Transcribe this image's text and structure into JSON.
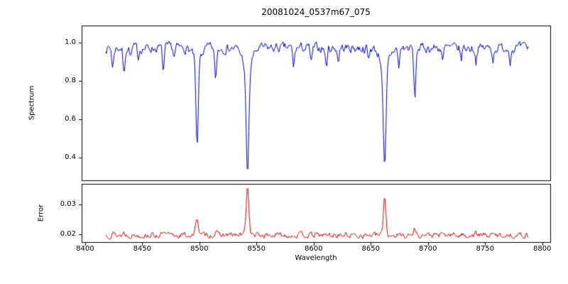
{
  "figure": {
    "title": "20081024_0537m67_075",
    "xlabel": "Wavelength",
    "ylabels": {
      "top": "Spectrum",
      "bottom": "Error"
    },
    "background": "#ffffff",
    "axis_color": "#000000"
  },
  "chart_data": {
    "type": "line",
    "title": "20081024_0537m67_075",
    "xlabel": "Wavelength",
    "grid": false,
    "legend": null,
    "xlim": [
      8397,
      8807
    ],
    "xticks": [
      8400,
      8450,
      8500,
      8550,
      8600,
      8650,
      8700,
      8750,
      8800
    ],
    "xtick_labels": [
      "8400",
      "8450",
      "8500",
      "8550",
      "8600",
      "8650",
      "8700",
      "8750",
      "8800"
    ],
    "subplots": [
      {
        "name": "spectrum",
        "ylabel": "Spectrum",
        "line_color": "#0000cc",
        "ylim": [
          0.2815,
          1.0889
        ],
        "yticks": [
          0.4,
          0.6,
          0.8,
          1.0
        ],
        "ytick_labels": [
          "0.4",
          "0.6",
          "0.8",
          "1.0"
        ],
        "x_start": 8418,
        "x_end": 8788,
        "sample_step": 0.75,
        "continuum": 0.972,
        "noise_amplitude": 0.045,
        "noise_corr": 0.55,
        "absorption_lines": [
          {
            "center": 8424.2,
            "depth": 0.1,
            "sigma": 0.8
          },
          {
            "center": 8434.0,
            "depth": 0.14,
            "sigma": 0.8
          },
          {
            "center": 8440.0,
            "depth": 0.05,
            "sigma": 0.7
          },
          {
            "center": 8446.5,
            "depth": 0.05,
            "sigma": 0.7
          },
          {
            "center": 8468.5,
            "depth": 0.12,
            "sigma": 0.8
          },
          {
            "center": 8478.0,
            "depth": 0.05,
            "sigma": 0.7
          },
          {
            "center": 8498.0,
            "depth": 0.47,
            "sigma": 1.0
          },
          {
            "center": 8498.0,
            "depth": 0.06,
            "sigma": 3.5
          },
          {
            "center": 8514.2,
            "depth": 0.16,
            "sigma": 0.9
          },
          {
            "center": 8542.1,
            "depth": 0.56,
            "sigma": 1.2
          },
          {
            "center": 8542.1,
            "depth": 0.1,
            "sigma": 4.0
          },
          {
            "center": 8582.5,
            "depth": 0.1,
            "sigma": 0.8
          },
          {
            "center": 8598.0,
            "depth": 0.08,
            "sigma": 0.8
          },
          {
            "center": 8611.0,
            "depth": 0.1,
            "sigma": 0.8
          },
          {
            "center": 8621.5,
            "depth": 0.07,
            "sigma": 0.7
          },
          {
            "center": 8648.0,
            "depth": 0.07,
            "sigma": 0.7
          },
          {
            "center": 8662.1,
            "depth": 0.55,
            "sigma": 1.2
          },
          {
            "center": 8662.1,
            "depth": 0.09,
            "sigma": 4.0
          },
          {
            "center": 8674.5,
            "depth": 0.1,
            "sigma": 0.8
          },
          {
            "center": 8688.5,
            "depth": 0.26,
            "sigma": 0.9
          },
          {
            "center": 8713.0,
            "depth": 0.07,
            "sigma": 0.7
          },
          {
            "center": 8729.0,
            "depth": 0.06,
            "sigma": 0.7
          },
          {
            "center": 8742.0,
            "depth": 0.07,
            "sigma": 0.7
          },
          {
            "center": 8757.0,
            "depth": 0.06,
            "sigma": 0.7
          },
          {
            "center": 8772.0,
            "depth": 0.06,
            "sigma": 0.7
          }
        ]
      },
      {
        "name": "error",
        "ylabel": "Error",
        "line_color": "#dd0000",
        "ylim": [
          0.01738,
          0.0369
        ],
        "yticks": [
          0.02,
          0.03
        ],
        "ytick_labels": [
          "0.02",
          "0.03"
        ],
        "x_start": 8418,
        "x_end": 8788,
        "sample_step": 0.75,
        "baseline": 0.0197,
        "noise_amplitude": 0.0016,
        "noise_corr": 0.5,
        "peaks": [
          {
            "center": 8424.0,
            "height": 0.0012,
            "sigma": 0.8
          },
          {
            "center": 8434.0,
            "height": 0.001,
            "sigma": 0.8
          },
          {
            "center": 8468.5,
            "height": 0.0008,
            "sigma": 0.8
          },
          {
            "center": 8498.0,
            "height": 0.0062,
            "sigma": 1.1
          },
          {
            "center": 8514.2,
            "height": 0.0012,
            "sigma": 0.9
          },
          {
            "center": 8542.1,
            "height": 0.0163,
            "sigma": 1.2
          },
          {
            "center": 8662.1,
            "height": 0.013,
            "sigma": 1.1
          },
          {
            "center": 8688.5,
            "height": 0.0022,
            "sigma": 0.9
          },
          {
            "center": 8742.0,
            "height": 0.0008,
            "sigma": 0.7
          }
        ]
      }
    ]
  }
}
